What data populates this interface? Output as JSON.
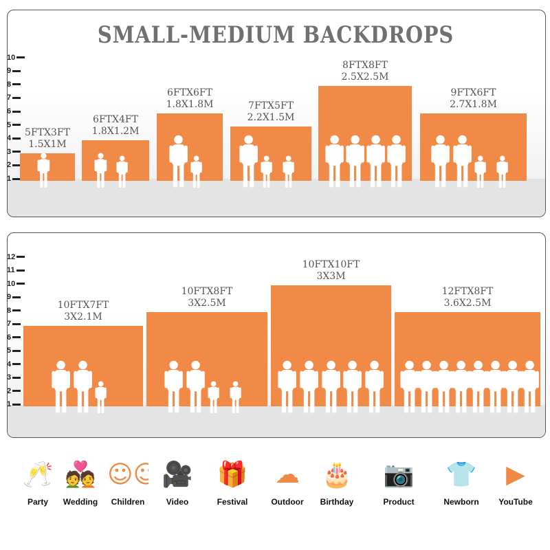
{
  "title": "SMALL-MEDIUM BACKDROPS",
  "colors": {
    "bar": "#f08a46",
    "title": "#707070",
    "icon": "#ee8a45"
  },
  "panel1": {
    "ticks": [
      "1",
      "2",
      "3",
      "4",
      "5",
      "6",
      "7",
      "8",
      "9",
      "10"
    ],
    "bars": [
      {
        "ft": "5FTX3FT",
        "m": "1.5X1M",
        "height_ft": 3
      },
      {
        "ft": "6FTX4FT",
        "m": "1.8X1.2M",
        "height_ft": 4
      },
      {
        "ft": "6FTX6FT",
        "m": "1.8X1.8M",
        "height_ft": 6
      },
      {
        "ft": "7FTX5FT",
        "m": "2.2X1.5M",
        "height_ft": 5
      },
      {
        "ft": "8FTX8FT",
        "m": "2.5X2.5M",
        "height_ft": 8
      },
      {
        "ft": "9FTX6FT",
        "m": "2.7X1.8M",
        "height_ft": 6
      }
    ]
  },
  "panel2": {
    "ticks": [
      "1",
      "2",
      "3",
      "4",
      "5",
      "6",
      "7",
      "8",
      "9",
      "10",
      "11",
      "12"
    ],
    "bars": [
      {
        "ft": "10FTX7FT",
        "m": "3X2.1M",
        "height_ft": 7
      },
      {
        "ft": "10FTX8FT",
        "m": "3X2.5M",
        "height_ft": 8
      },
      {
        "ft": "10FTX10FT",
        "m": "3X3M",
        "height_ft": 10
      },
      {
        "ft": "12FTX8FT",
        "m": "3.6X2.5M",
        "height_ft": 8
      }
    ]
  },
  "uses": [
    {
      "label": "Party",
      "icon": "toast-glasses-icon",
      "glyph": "🥂"
    },
    {
      "label": "Wedding",
      "icon": "wedding-couple-icon",
      "glyph": "💑"
    },
    {
      "label": "Children",
      "icon": "children-faces-icon",
      "glyph": "☺☺"
    },
    {
      "label": "Video",
      "icon": "video-camera-icon",
      "glyph": "🎥"
    },
    {
      "label": "Festival",
      "icon": "gift-box-icon",
      "glyph": "🎁"
    },
    {
      "label": "Outdoor",
      "icon": "cloud-icon",
      "glyph": "☁"
    },
    {
      "label": "Birthday",
      "icon": "birthday-cake-icon",
      "glyph": "🎂"
    },
    {
      "label": "Product",
      "icon": "camera-icon",
      "glyph": "📷"
    },
    {
      "label": "Newborn",
      "icon": "baby-onesie-icon",
      "glyph": "👕"
    },
    {
      "label": "YouTube",
      "icon": "play-button-icon",
      "glyph": "▶"
    }
  ]
}
